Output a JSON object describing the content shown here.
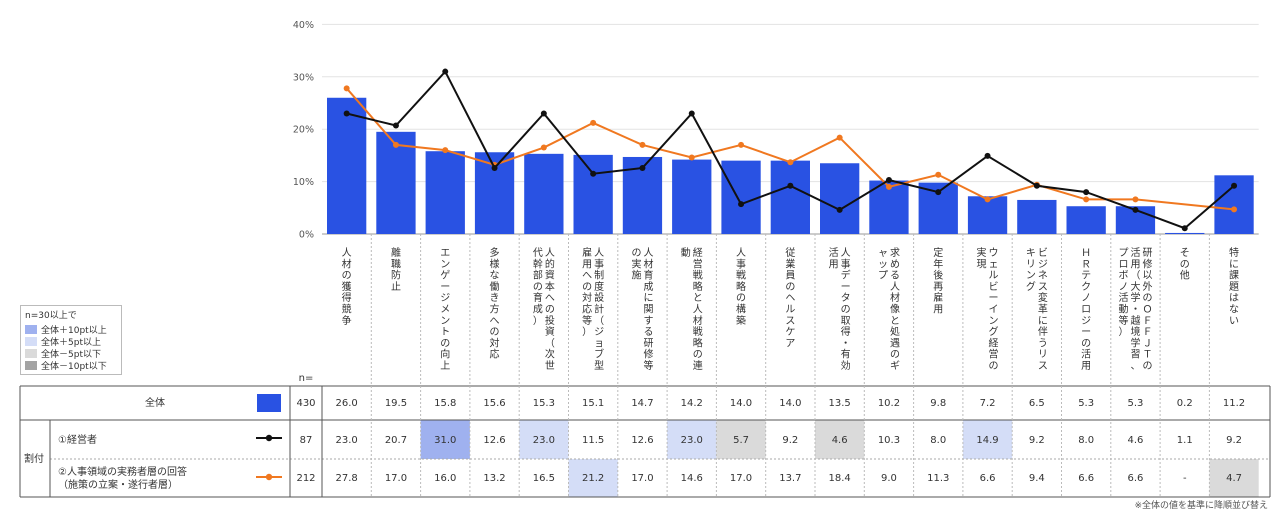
{
  "chart_data": {
    "type": "bar+line",
    "title": "",
    "y_axis": {
      "min": 0,
      "max": 40,
      "ticks": [
        "0%",
        "10%",
        "20%",
        "30%",
        "40%"
      ]
    },
    "categories": [
      "人材の獲得競争",
      "離職防止",
      "エンゲージメントの向上",
      "多様な働き方への対応",
      "人的資本への投資（次世代幹部の育成）",
      "人事制度設計（ジョブ型雇用への対応等）",
      "人材育成に関する研修等の実施",
      "経営戦略と人材戦略の連動",
      "人事戦略の構築",
      "従業員のヘルスケア",
      "人事データの取得・有効活用",
      "求める人材像と処遇のギャップ",
      "定年後再雇用",
      "ウェルビーイング経営の実現",
      "ビジネス変革に伴うリスキリング",
      "ＨＲテクノロジーの活用",
      "研修以外のＯＦＦＪＴの活用（大学・越境学習、プロボノ活動等）",
      "その他",
      "特に課題はない"
    ],
    "series": [
      {
        "name": "全体",
        "type": "bar",
        "n": "430",
        "color": "#2952e3",
        "values": [
          26.0,
          19.5,
          15.8,
          15.6,
          15.3,
          15.1,
          14.7,
          14.2,
          14.0,
          14.0,
          13.5,
          10.2,
          9.8,
          7.2,
          6.5,
          5.3,
          5.3,
          0.2,
          11.2
        ]
      },
      {
        "name": "①経営者",
        "type": "line",
        "n": "87",
        "color": "#111111",
        "values": [
          23.0,
          20.7,
          31.0,
          12.6,
          23.0,
          11.5,
          12.6,
          23.0,
          5.7,
          9.2,
          4.6,
          10.3,
          8.0,
          14.9,
          9.2,
          8.0,
          4.6,
          1.1,
          9.2
        ]
      },
      {
        "name": "②人事領域の実務者層の回答",
        "name_sub": "（施策の立案・遂行者層）",
        "type": "line",
        "n": "212",
        "color": "#f07820",
        "values": [
          27.8,
          17.0,
          16.0,
          13.2,
          16.5,
          21.2,
          17.0,
          14.6,
          17.0,
          13.7,
          18.4,
          9.0,
          11.3,
          6.6,
          9.4,
          6.6,
          6.6,
          null,
          4.7
        ]
      }
    ],
    "table": {
      "n_header": "n=",
      "overall_label": "全体",
      "group_label": "割付",
      "rows": [
        {
          "values": [
            "26.0",
            "19.5",
            "15.8",
            "15.6",
            "15.3",
            "15.1",
            "14.7",
            "14.2",
            "14.0",
            "14.0",
            "13.5",
            "10.2",
            "9.8",
            "7.2",
            "6.5",
            "5.3",
            "5.3",
            "0.2",
            "11.2"
          ],
          "highlights": [
            "",
            "",
            "",
            "",
            "",
            "",
            "",
            "",
            "",
            "",
            "",
            "",
            "",
            "",
            "",
            "",
            "",
            "",
            ""
          ]
        },
        {
          "values": [
            "23.0",
            "20.7",
            "31.0",
            "12.6",
            "23.0",
            "11.5",
            "12.6",
            "23.0",
            "5.7",
            "9.2",
            "4.6",
            "10.3",
            "8.0",
            "14.9",
            "9.2",
            "8.0",
            "4.6",
            "1.1",
            "9.2"
          ],
          "highlights": [
            "",
            "",
            "p10",
            "",
            "p5",
            "",
            "",
            "p5",
            "m5",
            "",
            "m5",
            "",
            "",
            "p5",
            "",
            "",
            "",
            "",
            ""
          ]
        },
        {
          "values": [
            "27.8",
            "17.0",
            "16.0",
            "13.2",
            "16.5",
            "21.2",
            "17.0",
            "14.6",
            "17.0",
            "13.7",
            "18.4",
            "9.0",
            "11.3",
            "6.6",
            "9.4",
            "6.6",
            "6.6",
            "-",
            "4.7"
          ],
          "highlights": [
            "",
            "",
            "",
            "",
            "",
            "p5",
            "",
            "",
            "",
            "",
            "",
            "",
            "",
            "",
            "",
            "",
            "",
            "",
            "m5"
          ]
        }
      ]
    },
    "legend": [
      {
        "key": "p10",
        "label": "全体＋10pt以上",
        "color": "#9fb1ef"
      },
      {
        "key": "p5",
        "label": "全体＋5pt以上",
        "color": "#d4ddf7"
      },
      {
        "key": "m5",
        "label": "全体－5pt以下",
        "color": "#dadada"
      },
      {
        "key": "m10",
        "label": "全体－10pt以下",
        "color": "#a3a3a3"
      }
    ]
  },
  "legend_title": "n=30以上で",
  "footnote": "※全体の値を基準に降順並び替え"
}
